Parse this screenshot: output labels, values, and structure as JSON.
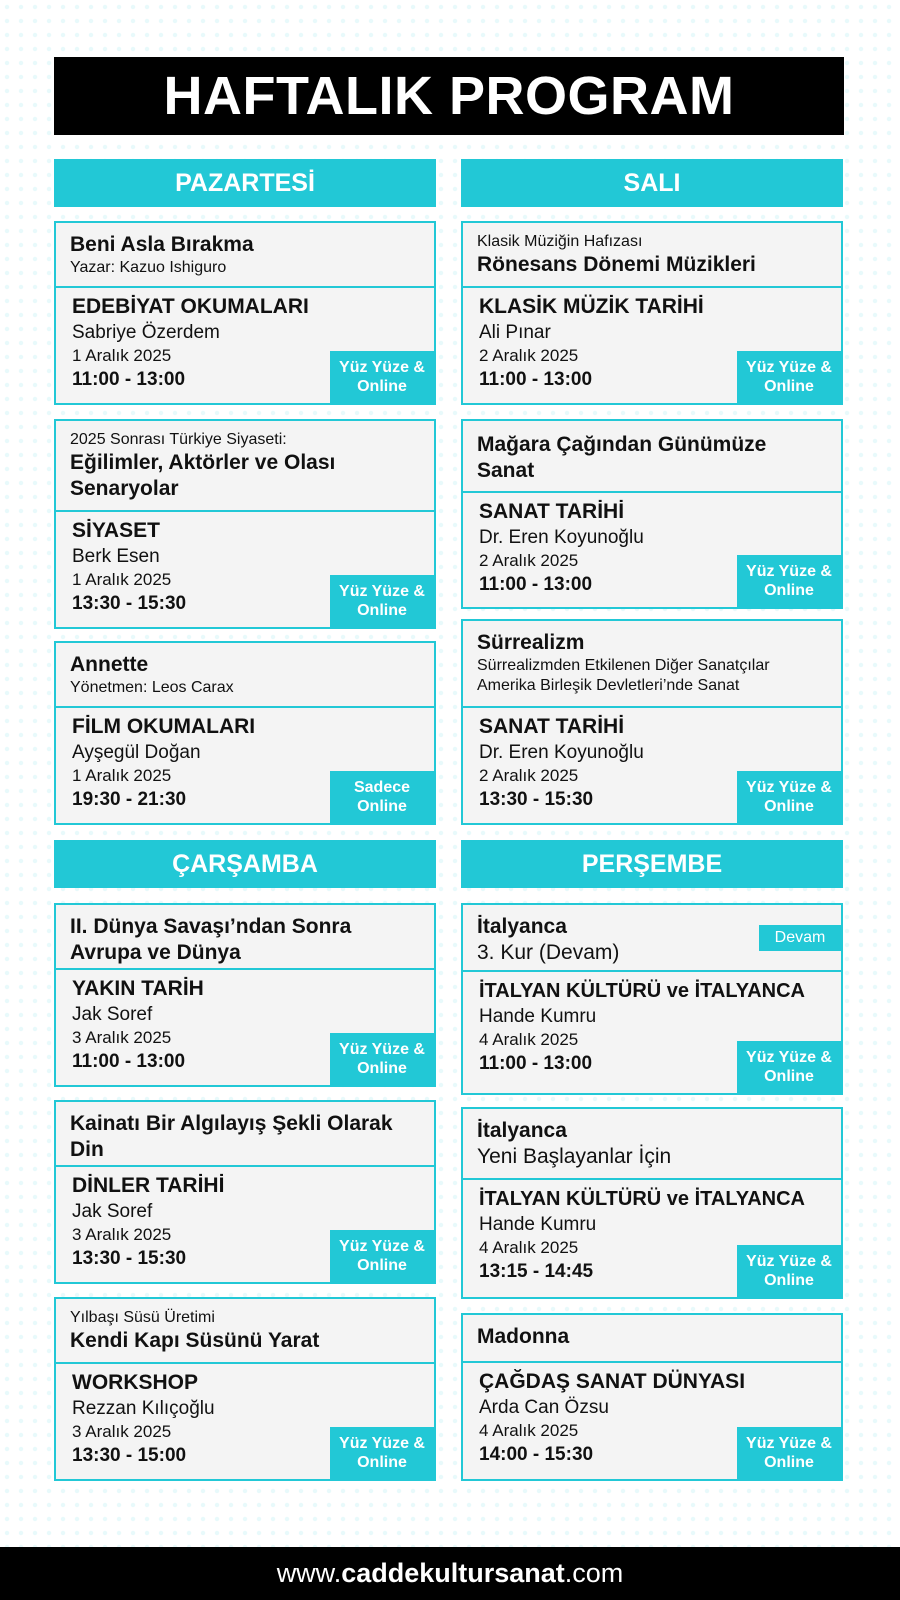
{
  "header": {
    "title": "HAFTALIK PROGRAM"
  },
  "days": {
    "monday": "PAZARTESİ",
    "tuesday": "SALI",
    "wednesday": "ÇARŞAMBA",
    "thursday": "PERŞEMBE"
  },
  "events": [
    {
      "head_small_top": "",
      "head_title": "Beni Asla Bırakma",
      "head_small_bottom": "Yazar: Kazuo Ishiguro",
      "category": "EDEBİYAT OKUMALARI",
      "person": "Sabriye Özerdem",
      "date": "1 Aralık 2025",
      "time": "11:00 - 13:00",
      "badge": "Yüz Yüze & Online"
    },
    {
      "head_small_top": "2025 Sonrası Türkiye Siyaseti:",
      "head_title": "Eğilimler, Aktörler ve Olası Senaryolar",
      "head_small_bottom": "",
      "category": "SİYASET",
      "person": "Berk Esen",
      "date": "1 Aralık 2025",
      "time": "13:30 - 15:30",
      "badge": "Yüz Yüze & Online"
    },
    {
      "head_small_top": "",
      "head_title": "Annette",
      "head_small_bottom": "Yönetmen: Leos Carax",
      "category": "FİLM OKUMALARI",
      "person": "Ayşegül Doğan",
      "date": "1 Aralık 2025",
      "time": "19:30 - 21:30",
      "badge": "Sadece Online"
    },
    {
      "head_small_top": "Klasik Müziğin Hafızası",
      "head_title": "Rönesans Dönemi Müzikleri",
      "head_small_bottom": "",
      "category": "KLASİK MÜZİK TARİHİ",
      "person": "Ali Pınar",
      "date": "2 Aralık 2025",
      "time": "11:00 - 13:00",
      "badge": "Yüz Yüze & Online"
    },
    {
      "head_small_top": "",
      "head_title": "Mağara Çağından Günümüze Sanat",
      "head_small_bottom": "",
      "category": "SANAT TARİHİ",
      "person": "Dr. Eren Koyunoğlu",
      "date": "2 Aralık 2025",
      "time": "11:00 - 13:00",
      "badge": "Yüz Yüze & Online"
    },
    {
      "head_small_top": "",
      "head_title": "Sürrealizm",
      "head_small_bottom": "Sürrealizmden Etkilenen Diğer Sanatçılar Amerika Birleşik Devletleri’nde Sanat",
      "category": "SANAT TARİHİ",
      "person": "Dr. Eren Koyunoğlu",
      "date": "2 Aralık 2025",
      "time": "13:30 - 15:30",
      "badge": "Yüz Yüze & Online"
    },
    {
      "head_small_top": "",
      "head_title": "II. Dünya Savaşı’ndan Sonra Avrupa ve Dünya",
      "head_small_bottom": "",
      "category": "YAKIN TARİH",
      "person": "Jak Soref",
      "date": "3 Aralık 2025",
      "time": "11:00 - 13:00",
      "badge": "Yüz Yüze & Online"
    },
    {
      "head_small_top": "",
      "head_title": "Kainatı Bir Algılayış Şekli Olarak Din",
      "head_small_bottom": "",
      "category": "DİNLER TARİHİ",
      "person": "Jak Soref",
      "date": "3 Aralık 2025",
      "time": "13:30 - 15:30",
      "badge": "Yüz Yüze & Online"
    },
    {
      "head_small_top": "Yılbaşı Süsü Üretimi",
      "head_title": "Kendi Kapı Süsünü Yarat",
      "head_small_bottom": "",
      "category": "WORKSHOP",
      "person": "Rezzan Kılıçoğlu",
      "date": "3 Aralık 2025",
      "time": "13:30 - 15:00",
      "badge": "Yüz Yüze & Online"
    },
    {
      "head_small_top": "",
      "head_title": "İtalyanca",
      "head_reg": "3. Kur (Devam)",
      "head_tag": "Devam",
      "category": "İTALYAN KÜLTÜRÜ ve İTALYANCA",
      "person": "Hande Kumru",
      "date": "4 Aralık 2025",
      "time": "11:00 - 13:00",
      "badge": "Yüz Yüze & Online"
    },
    {
      "head_small_top": "",
      "head_title": "İtalyanca",
      "head_reg": "Yeni Başlayanlar İçin",
      "category": "İTALYAN KÜLTÜRÜ ve İTALYANCA",
      "person": "Hande Kumru",
      "date": "4 Aralık 2025",
      "time": "13:15 - 14:45",
      "badge": "Yüz Yüze & Online"
    },
    {
      "head_small_top": "",
      "head_title": "Madonna",
      "head_small_bottom": "",
      "category": "ÇAĞDAŞ SANAT DÜNYASI",
      "person": "Arda Can Özsu",
      "date": "4 Aralık 2025",
      "time": "14:00 - 15:30",
      "badge": "Yüz Yüze & Online"
    }
  ],
  "footer": {
    "prefix": "www.",
    "domain": "caddekultursanat",
    "suffix": ".com"
  },
  "colors": {
    "accent": "#22c8d6",
    "dark": "#000000",
    "card_bg": "#f4f4f4"
  }
}
